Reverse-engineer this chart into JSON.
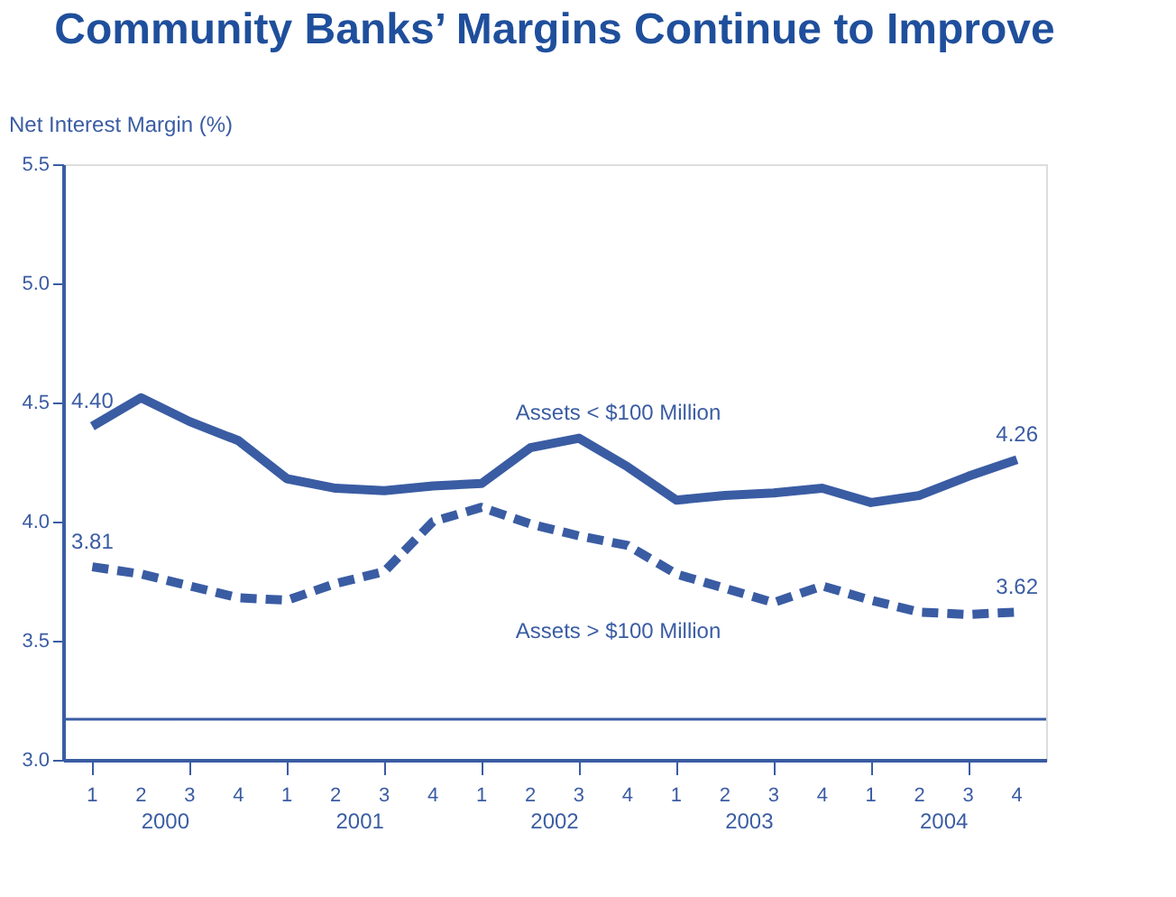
{
  "chart_data": {
    "type": "line",
    "title": "Community Banks’ Margins Continue to Improve",
    "ylabel": "Net Interest Margin (%)",
    "categories": [
      "1",
      "2",
      "3",
      "4",
      "1",
      "2",
      "3",
      "4",
      "1",
      "2",
      "3",
      "4",
      "1",
      "2",
      "3",
      "4",
      "1",
      "2",
      "3",
      "4"
    ],
    "annotations": [
      "2000",
      "2001",
      "2002",
      "2003",
      "2004"
    ],
    "series": [
      {
        "name": "Assets < $100 Million",
        "color": "#3a5ca3",
        "line_style": "solid",
        "values": [
          4.4,
          4.52,
          4.42,
          4.34,
          4.18,
          4.14,
          4.13,
          4.15,
          4.16,
          4.31,
          4.35,
          4.23,
          4.09,
          4.11,
          4.12,
          4.14,
          4.08,
          4.11,
          4.19,
          4.26
        ],
        "value_labels": [
          "4.40",
          null,
          null,
          null,
          null,
          null,
          null,
          null,
          null,
          null,
          null,
          null,
          null,
          null,
          null,
          null,
          null,
          null,
          null,
          "4.26"
        ]
      },
      {
        "name": "Assets > $100 Million",
        "color": "#3a5ca3",
        "line_style": "dashed",
        "values": [
          3.81,
          3.78,
          3.73,
          3.68,
          3.67,
          3.74,
          3.79,
          4.0,
          4.06,
          3.99,
          3.94,
          3.9,
          3.78,
          3.72,
          3.66,
          3.73,
          3.67,
          3.62,
          3.61,
          3.62
        ],
        "value_labels": [
          "3.81",
          null,
          null,
          null,
          null,
          null,
          null,
          null,
          null,
          null,
          null,
          null,
          null,
          null,
          null,
          null,
          null,
          null,
          null,
          "3.62"
        ]
      }
    ],
    "ylim": [
      3.0,
      5.5
    ],
    "yticks": [
      {
        "value": 3.0,
        "label": "3.0"
      },
      3.5,
      {
        "value": 4.0,
        "label": "4.0"
      },
      4.5,
      {
        "value": 5.0,
        "label": "5.0"
      },
      5.5
    ],
    "ref_lines": [
      {
        "axis": "y",
        "value": 3.17,
        "color": "#3a5ca3"
      }
    ],
    "grid": false,
    "legend": false,
    "marker": "none"
  }
}
